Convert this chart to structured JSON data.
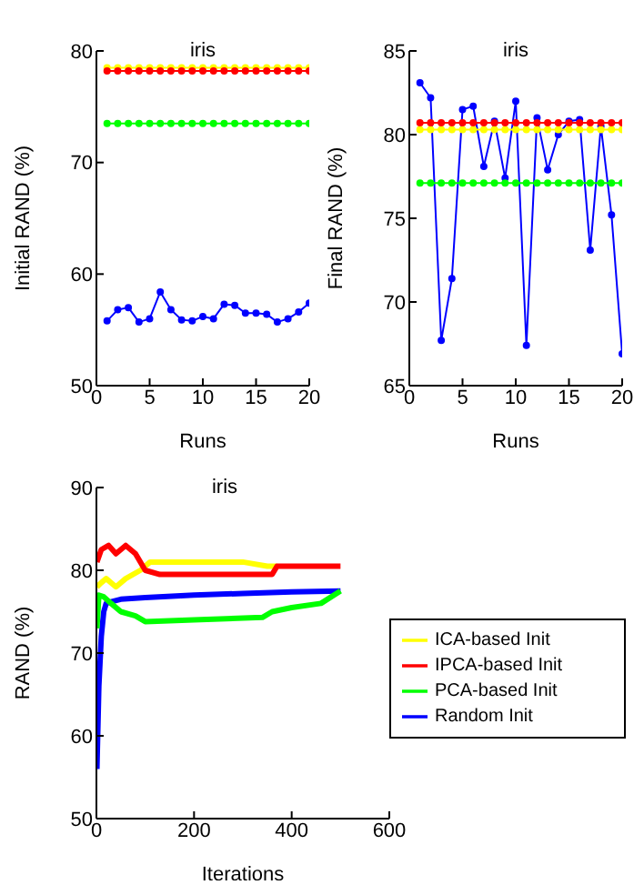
{
  "chart_data": [
    {
      "type": "line",
      "title": "iris",
      "xlabel": "Runs",
      "ylabel": "Initial RAND (%)",
      "x": [
        1,
        2,
        3,
        4,
        5,
        6,
        7,
        8,
        9,
        10,
        11,
        12,
        13,
        14,
        15,
        16,
        17,
        18,
        19,
        20
      ],
      "xlim": [
        0,
        20
      ],
      "xticks": [
        0,
        5,
        10,
        15,
        20
      ],
      "ylim": [
        50,
        80
      ],
      "yticks": [
        50,
        60,
        70,
        80
      ],
      "marker": "circle",
      "grid": false,
      "legend": false,
      "series": [
        {
          "color": "#0000ff",
          "values": [
            55.8,
            56.8,
            57.0,
            55.7,
            56.0,
            58.4,
            56.8,
            55.9,
            55.8,
            56.2,
            56.0,
            57.3,
            57.2,
            56.5,
            56.5,
            56.4,
            55.7,
            56.0,
            56.6,
            57.4
          ]
        },
        {
          "color": "#00ff00",
          "values": [
            73.5,
            73.5,
            73.5,
            73.5,
            73.5,
            73.5,
            73.5,
            73.5,
            73.5,
            73.5,
            73.5,
            73.5,
            73.5,
            73.5,
            73.5,
            73.5,
            73.5,
            73.5,
            73.5,
            73.5
          ]
        },
        {
          "color": "#ffff00",
          "values": [
            78.5,
            78.5,
            78.5,
            78.5,
            78.5,
            78.5,
            78.5,
            78.5,
            78.5,
            78.5,
            78.5,
            78.5,
            78.5,
            78.5,
            78.5,
            78.5,
            78.5,
            78.5,
            78.5,
            78.5
          ]
        },
        {
          "color": "#ff0000",
          "values": [
            78.2,
            78.2,
            78.2,
            78.2,
            78.2,
            78.2,
            78.2,
            78.2,
            78.2,
            78.2,
            78.2,
            78.2,
            78.2,
            78.2,
            78.2,
            78.2,
            78.2,
            78.2,
            78.2,
            78.2
          ]
        }
      ]
    },
    {
      "type": "line",
      "title": "iris",
      "xlabel": "Runs",
      "ylabel": "Final RAND (%)",
      "x": [
        1,
        2,
        3,
        4,
        5,
        6,
        7,
        8,
        9,
        10,
        11,
        12,
        13,
        14,
        15,
        16,
        17,
        18,
        19,
        20
      ],
      "xlim": [
        0,
        20
      ],
      "xticks": [
        0,
        5,
        10,
        15,
        20
      ],
      "ylim": [
        65,
        85
      ],
      "yticks": [
        65,
        70,
        75,
        80,
        85
      ],
      "marker": "circle",
      "grid": false,
      "legend": false,
      "series": [
        {
          "color": "#0000ff",
          "values": [
            83.1,
            82.2,
            67.7,
            71.4,
            81.5,
            81.7,
            78.1,
            80.8,
            77.4,
            82.0,
            67.4,
            81.0,
            77.9,
            80.0,
            80.8,
            80.9,
            73.1,
            80.5,
            75.2,
            66.9
          ]
        },
        {
          "color": "#00ff00",
          "values": [
            77.1,
            77.1,
            77.1,
            77.1,
            77.1,
            77.1,
            77.1,
            77.1,
            77.1,
            77.1,
            77.1,
            77.1,
            77.1,
            77.1,
            77.1,
            77.1,
            77.1,
            77.1,
            77.1,
            77.1
          ]
        },
        {
          "color": "#ffff00",
          "values": [
            80.3,
            80.3,
            80.3,
            80.3,
            80.3,
            80.3,
            80.3,
            80.3,
            80.3,
            80.3,
            80.3,
            80.3,
            80.3,
            80.3,
            80.3,
            80.3,
            80.3,
            80.3,
            80.3,
            80.3
          ]
        },
        {
          "color": "#ff0000",
          "values": [
            80.7,
            80.7,
            80.7,
            80.7,
            80.7,
            80.7,
            80.7,
            80.7,
            80.7,
            80.7,
            80.7,
            80.7,
            80.7,
            80.7,
            80.7,
            80.7,
            80.7,
            80.7,
            80.7,
            80.7
          ]
        }
      ]
    },
    {
      "type": "line",
      "title": "iris",
      "xlabel": "Iterations",
      "ylabel": "RAND (%)",
      "xlim": [
        0,
        600
      ],
      "xticks": [
        0,
        200,
        400,
        600
      ],
      "ylim": [
        50,
        90
      ],
      "yticks": [
        50,
        60,
        70,
        80,
        90
      ],
      "marker": "none",
      "grid": false,
      "legend": "right",
      "series": [
        {
          "name": "Random Init",
          "color": "#0000ff",
          "x": [
            1,
            5,
            10,
            15,
            20,
            30,
            50,
            100,
            200,
            300,
            400,
            500
          ],
          "values": [
            56,
            66,
            72,
            75,
            76,
            76.2,
            76.5,
            76.7,
            77,
            77.2,
            77.4,
            77.5
          ]
        },
        {
          "name": "PCA-based Init",
          "color": "#00ff00",
          "x": [
            1,
            5,
            15,
            30,
            50,
            80,
            100,
            200,
            340,
            360,
            400,
            460,
            500
          ],
          "values": [
            73,
            77,
            76.8,
            76,
            75,
            74.5,
            73.8,
            74,
            74.3,
            75,
            75.5,
            76,
            77.5
          ]
        },
        {
          "name": "ICA-based Init",
          "color": "#ffff00",
          "x": [
            1,
            10,
            20,
            40,
            60,
            90,
            110,
            200,
            300,
            350,
            370
          ],
          "values": [
            78,
            78.5,
            79,
            78,
            79,
            80,
            81,
            81,
            81,
            80.5,
            80.5
          ]
        },
        {
          "name": "IPCA-based Init",
          "color": "#ff0000",
          "x": [
            1,
            10,
            25,
            40,
            60,
            80,
            100,
            130,
            200,
            360,
            370,
            500
          ],
          "values": [
            81,
            82.5,
            83,
            82,
            83,
            82,
            80,
            79.5,
            79.5,
            79.5,
            80.5,
            80.5
          ]
        }
      ]
    }
  ]
}
